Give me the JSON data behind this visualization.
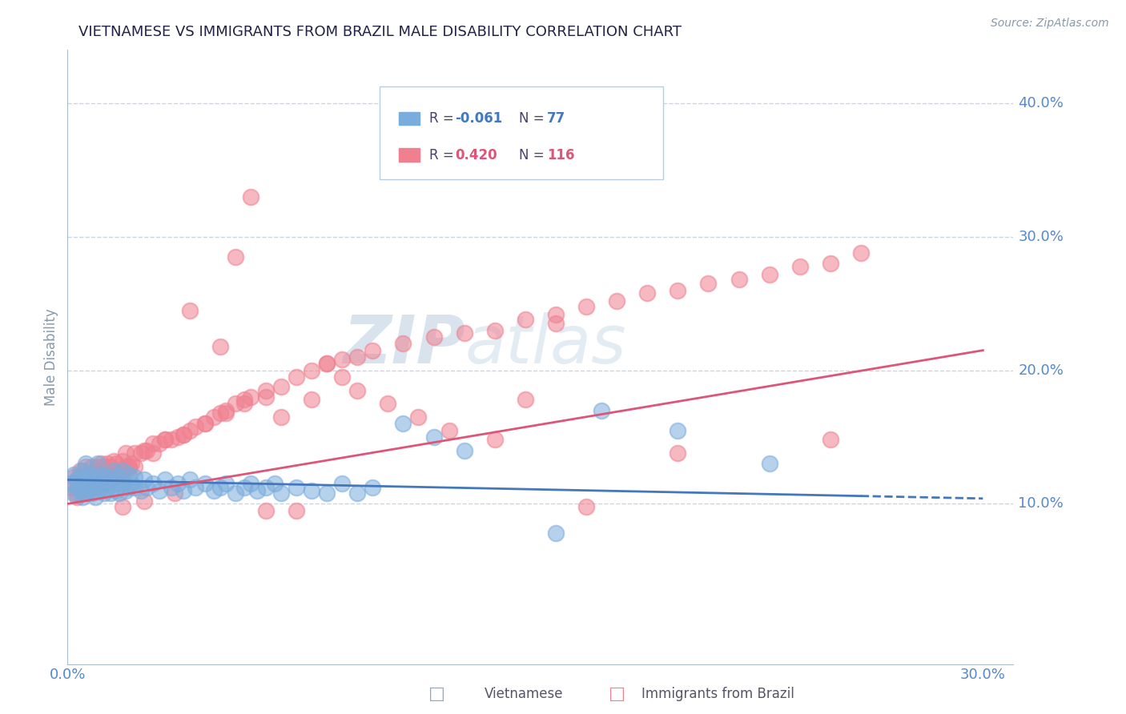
{
  "title": "VIETNAMESE VS IMMIGRANTS FROM BRAZIL MALE DISABILITY CORRELATION CHART",
  "source": "Source: ZipAtlas.com",
  "ylabel": "Male Disability",
  "xlim": [
    0.0,
    0.31
  ],
  "ylim": [
    -0.02,
    0.44
  ],
  "yticks": [
    0.1,
    0.2,
    0.3,
    0.4
  ],
  "ytick_labels": [
    "10.0%",
    "20.0%",
    "30.0%",
    "40.0%"
  ],
  "xtick_vals": [
    0.0,
    0.3
  ],
  "xtick_labels": [
    "0.0%",
    "30.0%"
  ],
  "color_vietnamese": "#7aacdc",
  "color_brazil": "#f08090",
  "color_line_vietnamese": "#4477bb",
  "color_line_brazil": "#dd5577",
  "background_color": "#ffffff",
  "grid_color": "#c8d4e8",
  "title_color": "#222244",
  "axis_label_color": "#8899aa",
  "tick_label_color": "#5588cc",
  "viet_line_x": [
    0.0,
    0.3
  ],
  "viet_line_y": [
    0.118,
    0.104
  ],
  "brazil_line_x": [
    0.0,
    0.3
  ],
  "brazil_line_y": [
    0.1,
    0.215
  ],
  "viet_line_solid_end": 0.26,
  "viet_points_x": [
    0.001,
    0.002,
    0.002,
    0.003,
    0.003,
    0.004,
    0.004,
    0.005,
    0.005,
    0.005,
    0.006,
    0.006,
    0.006,
    0.007,
    0.007,
    0.008,
    0.008,
    0.009,
    0.009,
    0.01,
    0.01,
    0.01,
    0.011,
    0.011,
    0.012,
    0.012,
    0.013,
    0.013,
    0.014,
    0.015,
    0.015,
    0.016,
    0.016,
    0.017,
    0.018,
    0.018,
    0.019,
    0.02,
    0.02,
    0.021,
    0.022,
    0.022,
    0.024,
    0.025,
    0.026,
    0.028,
    0.03,
    0.032,
    0.034,
    0.036,
    0.038,
    0.04,
    0.042,
    0.045,
    0.048,
    0.05,
    0.052,
    0.055,
    0.058,
    0.06,
    0.062,
    0.065,
    0.068,
    0.07,
    0.075,
    0.08,
    0.085,
    0.09,
    0.095,
    0.1,
    0.11,
    0.12,
    0.13,
    0.16,
    0.175,
    0.2,
    0.23
  ],
  "viet_points_y": [
    0.115,
    0.108,
    0.122,
    0.112,
    0.118,
    0.12,
    0.11,
    0.105,
    0.115,
    0.125,
    0.108,
    0.118,
    0.13,
    0.112,
    0.122,
    0.108,
    0.118,
    0.105,
    0.115,
    0.11,
    0.12,
    0.13,
    0.112,
    0.122,
    0.108,
    0.118,
    0.112,
    0.12,
    0.108,
    0.115,
    0.125,
    0.11,
    0.12,
    0.108,
    0.115,
    0.125,
    0.11,
    0.112,
    0.122,
    0.115,
    0.112,
    0.12,
    0.11,
    0.118,
    0.112,
    0.115,
    0.11,
    0.118,
    0.112,
    0.115,
    0.11,
    0.118,
    0.112,
    0.115,
    0.11,
    0.112,
    0.115,
    0.108,
    0.112,
    0.115,
    0.11,
    0.112,
    0.115,
    0.108,
    0.112,
    0.11,
    0.108,
    0.115,
    0.108,
    0.112,
    0.16,
    0.15,
    0.14,
    0.078,
    0.17,
    0.155,
    0.13
  ],
  "brazil_points_x": [
    0.001,
    0.002,
    0.003,
    0.003,
    0.004,
    0.004,
    0.005,
    0.006,
    0.006,
    0.007,
    0.007,
    0.008,
    0.008,
    0.009,
    0.009,
    0.01,
    0.01,
    0.011,
    0.011,
    0.012,
    0.012,
    0.013,
    0.013,
    0.014,
    0.014,
    0.015,
    0.015,
    0.016,
    0.016,
    0.017,
    0.018,
    0.018,
    0.019,
    0.019,
    0.02,
    0.021,
    0.022,
    0.022,
    0.024,
    0.025,
    0.026,
    0.028,
    0.03,
    0.032,
    0.034,
    0.036,
    0.038,
    0.04,
    0.042,
    0.045,
    0.048,
    0.05,
    0.052,
    0.055,
    0.058,
    0.06,
    0.065,
    0.07,
    0.075,
    0.08,
    0.085,
    0.09,
    0.095,
    0.1,
    0.11,
    0.12,
    0.13,
    0.14,
    0.15,
    0.16,
    0.17,
    0.18,
    0.19,
    0.2,
    0.21,
    0.22,
    0.23,
    0.24,
    0.25,
    0.26,
    0.07,
    0.08,
    0.09,
    0.04,
    0.05,
    0.15,
    0.2,
    0.25,
    0.16,
    0.17,
    0.055,
    0.06,
    0.065,
    0.075,
    0.085,
    0.095,
    0.105,
    0.115,
    0.125,
    0.14,
    0.018,
    0.003,
    0.025,
    0.035,
    0.006,
    0.008,
    0.012,
    0.015,
    0.02,
    0.028,
    0.032,
    0.038,
    0.045,
    0.052,
    0.058,
    0.065
  ],
  "brazil_points_y": [
    0.112,
    0.12,
    0.108,
    0.118,
    0.112,
    0.125,
    0.115,
    0.118,
    0.128,
    0.112,
    0.122,
    0.115,
    0.128,
    0.112,
    0.125,
    0.115,
    0.128,
    0.118,
    0.13,
    0.115,
    0.128,
    0.118,
    0.13,
    0.118,
    0.128,
    0.12,
    0.132,
    0.12,
    0.13,
    0.122,
    0.132,
    0.12,
    0.128,
    0.138,
    0.128,
    0.13,
    0.128,
    0.138,
    0.138,
    0.14,
    0.14,
    0.145,
    0.145,
    0.148,
    0.148,
    0.15,
    0.152,
    0.155,
    0.158,
    0.16,
    0.165,
    0.168,
    0.17,
    0.175,
    0.178,
    0.18,
    0.185,
    0.188,
    0.195,
    0.2,
    0.205,
    0.208,
    0.21,
    0.215,
    0.22,
    0.225,
    0.228,
    0.23,
    0.238,
    0.242,
    0.248,
    0.252,
    0.258,
    0.26,
    0.265,
    0.268,
    0.272,
    0.278,
    0.28,
    0.288,
    0.165,
    0.178,
    0.195,
    0.245,
    0.218,
    0.178,
    0.138,
    0.148,
    0.235,
    0.098,
    0.285,
    0.33,
    0.095,
    0.095,
    0.205,
    0.185,
    0.175,
    0.165,
    0.155,
    0.148,
    0.098,
    0.105,
    0.102,
    0.108,
    0.108,
    0.112,
    0.115,
    0.12,
    0.128,
    0.138,
    0.148,
    0.152,
    0.16,
    0.168,
    0.175,
    0.18
  ]
}
